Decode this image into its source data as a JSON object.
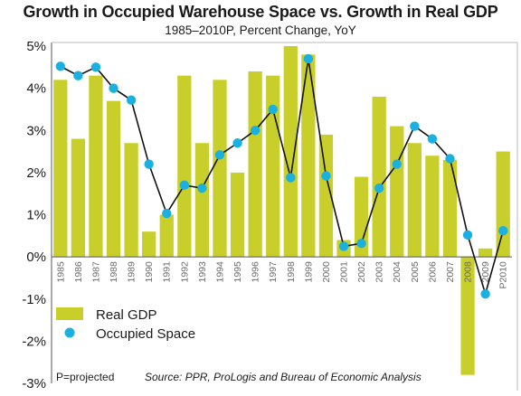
{
  "chart_data": {
    "type": "bar",
    "title": "Growth in Occupied Warehouse Space vs. Growth in Real GDP",
    "subtitle": "1985–2010P, Percent Change, YoY",
    "categories": [
      "1985",
      "1986",
      "1987",
      "1988",
      "1989",
      "1990",
      "1991",
      "1992",
      "1993",
      "1994",
      "1995",
      "1996",
      "1997",
      "1998",
      "1999",
      "2000",
      "2001",
      "2002",
      "2003",
      "2004",
      "2005",
      "2006",
      "2007",
      "2008",
      "2009",
      "P2010"
    ],
    "series": [
      {
        "name": "Real GDP",
        "type": "bar",
        "color": "#c8cf2a",
        "values": [
          4.2,
          2.8,
          4.3,
          3.7,
          2.7,
          0.6,
          1.0,
          4.3,
          2.7,
          4.2,
          2.0,
          4.4,
          4.3,
          5.0,
          4.8,
          2.9,
          0.4,
          1.9,
          3.8,
          3.1,
          2.7,
          2.4,
          2.3,
          -2.8,
          0.2,
          2.5
        ]
      },
      {
        "name": "Occupied Space",
        "type": "line",
        "color": "#1ab0e0",
        "values": [
          4.52,
          4.3,
          4.5,
          4.0,
          3.72,
          2.2,
          1.03,
          1.7,
          1.63,
          2.42,
          2.7,
          3.0,
          3.5,
          1.88,
          4.7,
          1.92,
          0.25,
          0.32,
          1.63,
          2.2,
          3.1,
          2.8,
          2.33,
          0.52,
          -0.88,
          0.62
        ]
      }
    ],
    "yticks": [
      "5%",
      "4%",
      "3%",
      "2%",
      "1%",
      "0%",
      "-1%",
      "-2%",
      "-3%"
    ],
    "ylim": [
      -3,
      5
    ],
    "grid": false,
    "legend": "bottom-left",
    "footnote": "P=projected",
    "source": "Source: PPR, ProLogis and Bureau of Economic Analysis"
  }
}
